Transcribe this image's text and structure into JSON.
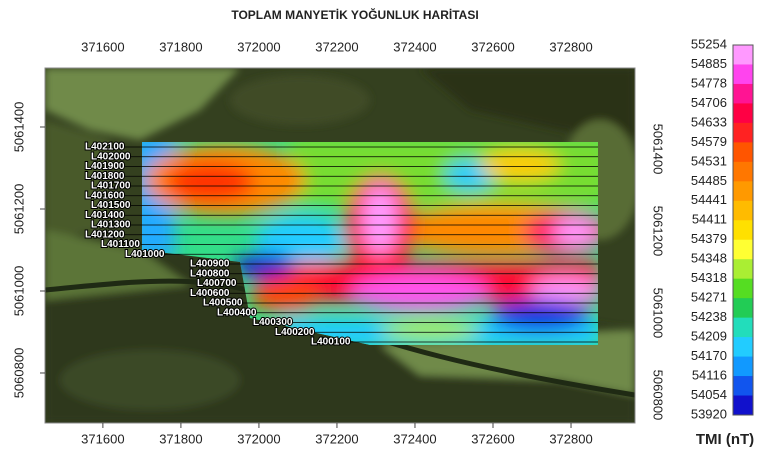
{
  "title": "TOPLAM MANYETİK YOĞUNLUK HARİTASI",
  "xlim": [
    371426,
    372964
  ],
  "ylim": [
    5060678,
    5061600
  ],
  "x_ticks": [
    371600,
    371800,
    372000,
    372200,
    372400,
    372600,
    372800
  ],
  "y_ticks": [
    5060800,
    5061000,
    5061200,
    5061400
  ],
  "survey_lines": [
    "L402100",
    "L402000",
    "L401900",
    "L401800",
    "L401700",
    "L401600",
    "L401500",
    "L401400",
    "L401300",
    "L401200",
    "L401100",
    "L401000",
    "L400900",
    "L400800",
    "L400700",
    "L400600",
    "L400500",
    "L400400",
    "L400300",
    "L400200",
    "L400100"
  ],
  "colorbar": {
    "title": "TMI (nT)",
    "labels": [
      55254,
      54885,
      54778,
      54706,
      54633,
      54579,
      54531,
      54485,
      54441,
      54411,
      54379,
      54348,
      54318,
      54271,
      54238,
      54209,
      54170,
      54116,
      54054,
      53920
    ],
    "colors": [
      "#ff99ff",
      "#ff44ee",
      "#ff1493",
      "#ff0044",
      "#ff2222",
      "#ff5500",
      "#ff7700",
      "#ff9900",
      "#ffbb00",
      "#ffe000",
      "#ffff33",
      "#aaee33",
      "#55dd22",
      "#22cc55",
      "#22ddbb",
      "#22ccff",
      "#1199ff",
      "#1155ee",
      "#1111cc"
    ]
  }
}
